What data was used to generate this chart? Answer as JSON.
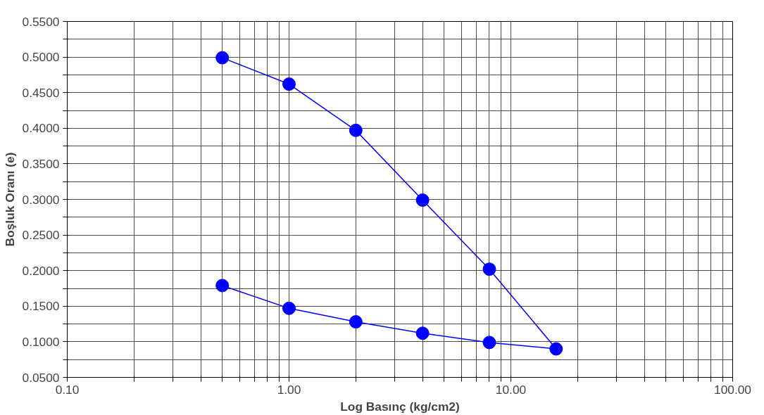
{
  "chart_data": {
    "type": "line",
    "xlabel": "Log Basınç (kg/cm2)",
    "ylabel": "Boşluk Oranı (e)",
    "series": [
      {
        "color": "#0000ff",
        "x": [
          0.5,
          1,
          2,
          4,
          8,
          16,
          8,
          4,
          2,
          1,
          0.5
        ],
        "values": [
          0.499,
          0.462,
          0.397,
          0.299,
          0.202,
          0.09,
          0.099,
          0.112,
          0.128,
          0.147,
          0.179
        ]
      }
    ],
    "log": "x",
    "marker": "circle",
    "line_style": "solid",
    "grid": true,
    "xlim": [
      0.1,
      100
    ],
    "ylim": [
      0.05,
      0.55
    ],
    "xticks": [
      {
        "value": 0.1,
        "label": "0.10"
      },
      {
        "value": 0.2,
        "label": null
      },
      {
        "value": 0.3,
        "label": null
      },
      {
        "value": 0.4,
        "label": null
      },
      {
        "value": 0.5,
        "label": null
      },
      {
        "value": 0.6,
        "label": null
      },
      {
        "value": 0.7,
        "label": null
      },
      {
        "value": 0.8,
        "label": null
      },
      {
        "value": 0.9,
        "label": null
      },
      {
        "value": 1,
        "label": "1.00"
      },
      {
        "value": 2,
        "label": null
      },
      {
        "value": 3,
        "label": null
      },
      {
        "value": 4,
        "label": null
      },
      {
        "value": 5,
        "label": null
      },
      {
        "value": 6,
        "label": null
      },
      {
        "value": 7,
        "label": null
      },
      {
        "value": 8,
        "label": null
      },
      {
        "value": 9,
        "label": null
      },
      {
        "value": 10,
        "label": "10.00"
      },
      {
        "value": 20,
        "label": null
      },
      {
        "value": 30,
        "label": null
      },
      {
        "value": 40,
        "label": null
      },
      {
        "value": 50,
        "label": null
      },
      {
        "value": 60,
        "label": null
      },
      {
        "value": 70,
        "label": null
      },
      {
        "value": 80,
        "label": null
      },
      {
        "value": 90,
        "label": null
      },
      {
        "value": 100,
        "label": "100.00"
      }
    ],
    "yticks": [
      {
        "value": 0.05,
        "label": "0.0500"
      },
      {
        "value": 0.075,
        "label": null
      },
      {
        "value": 0.1,
        "label": "0.1000"
      },
      {
        "value": 0.125,
        "label": null
      },
      {
        "value": 0.15,
        "label": "0.1500"
      },
      {
        "value": 0.175,
        "label": null
      },
      {
        "value": 0.2,
        "label": "0.2000"
      },
      {
        "value": 0.225,
        "label": null
      },
      {
        "value": 0.25,
        "label": "0.2500"
      },
      {
        "value": 0.275,
        "label": null
      },
      {
        "value": 0.3,
        "label": "0.3000"
      },
      {
        "value": 0.325,
        "label": null
      },
      {
        "value": 0.35,
        "label": "0.3500"
      },
      {
        "value": 0.375,
        "label": null
      },
      {
        "value": 0.4,
        "label": "0.4000"
      },
      {
        "value": 0.425,
        "label": null
      },
      {
        "value": 0.45,
        "label": "0.4500"
      },
      {
        "value": 0.475,
        "label": null
      },
      {
        "value": 0.5,
        "label": "0.5000"
      },
      {
        "value": 0.525,
        "label": null
      },
      {
        "value": 0.55,
        "label": "0.5500"
      }
    ]
  }
}
